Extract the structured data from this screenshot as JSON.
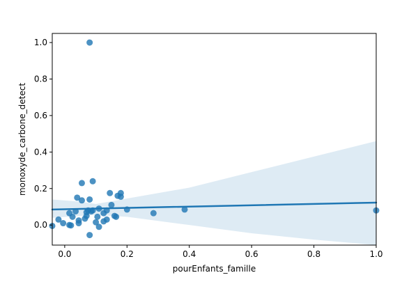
{
  "chart_data": {
    "type": "scatter",
    "title": "",
    "xlabel": "pourEnfants_famille",
    "ylabel": "monoxyde_carbone_detect",
    "xlim": [
      -0.04,
      1.0
    ],
    "ylim": [
      -0.11,
      1.05
    ],
    "xticks": [
      0.0,
      0.2,
      0.4,
      0.6,
      0.8,
      1.0
    ],
    "xtick_labels": [
      "0.0",
      "0.2",
      "0.4",
      "0.6",
      "0.8",
      "1.0"
    ],
    "yticks": [
      0.0,
      0.2,
      0.4,
      0.6,
      0.8,
      1.0
    ],
    "ytick_labels": [
      "0.0",
      "0.2",
      "0.4",
      "0.6",
      "0.8",
      "1.0"
    ],
    "grid": false,
    "legend": "none",
    "colors": {
      "points": "#1f77b4",
      "line": "#1f77b4",
      "band": "#1f77b4"
    },
    "points": [
      {
        "x": -0.04,
        "y": -0.005
      },
      {
        "x": -0.02,
        "y": 0.03
      },
      {
        "x": -0.005,
        "y": 0.01
      },
      {
        "x": 0.015,
        "y": 0.0
      },
      {
        "x": 0.02,
        "y": -0.002
      },
      {
        "x": 0.015,
        "y": 0.065
      },
      {
        "x": 0.025,
        "y": 0.045
      },
      {
        "x": 0.035,
        "y": 0.075
      },
      {
        "x": 0.04,
        "y": 0.15
      },
      {
        "x": 0.045,
        "y": 0.025
      },
      {
        "x": 0.045,
        "y": 0.01
      },
      {
        "x": 0.055,
        "y": 0.23
      },
      {
        "x": 0.055,
        "y": 0.135
      },
      {
        "x": 0.065,
        "y": 0.035
      },
      {
        "x": 0.07,
        "y": 0.05
      },
      {
        "x": 0.07,
        "y": 0.07
      },
      {
        "x": 0.075,
        "y": 0.08
      },
      {
        "x": 0.08,
        "y": 1.0
      },
      {
        "x": 0.08,
        "y": 0.14
      },
      {
        "x": 0.08,
        "y": -0.055
      },
      {
        "x": 0.085,
        "y": 0.075
      },
      {
        "x": 0.09,
        "y": 0.24
      },
      {
        "x": 0.09,
        "y": 0.08
      },
      {
        "x": 0.1,
        "y": 0.015
      },
      {
        "x": 0.105,
        "y": 0.045
      },
      {
        "x": 0.11,
        "y": 0.09
      },
      {
        "x": 0.11,
        "y": -0.01
      },
      {
        "x": 0.125,
        "y": 0.065
      },
      {
        "x": 0.125,
        "y": 0.02
      },
      {
        "x": 0.135,
        "y": 0.03
      },
      {
        "x": 0.135,
        "y": 0.08
      },
      {
        "x": 0.145,
        "y": 0.175
      },
      {
        "x": 0.15,
        "y": 0.11
      },
      {
        "x": 0.16,
        "y": 0.05
      },
      {
        "x": 0.165,
        "y": 0.045
      },
      {
        "x": 0.17,
        "y": 0.16
      },
      {
        "x": 0.18,
        "y": 0.175
      },
      {
        "x": 0.18,
        "y": 0.155
      },
      {
        "x": 0.2,
        "y": 0.085
      },
      {
        "x": 0.285,
        "y": 0.065
      },
      {
        "x": 0.385,
        "y": 0.085
      },
      {
        "x": 1.0,
        "y": 0.08
      }
    ],
    "regression": {
      "x": [
        -0.04,
        1.0
      ],
      "y": [
        0.085,
        0.123
      ],
      "ci_upper": [
        {
          "x": -0.04,
          "y": 0.14
        },
        {
          "x": 0.05,
          "y": 0.128
        },
        {
          "x": 0.1,
          "y": 0.115
        },
        {
          "x": 0.2,
          "y": 0.145
        },
        {
          "x": 0.4,
          "y": 0.205
        },
        {
          "x": 0.6,
          "y": 0.29
        },
        {
          "x": 0.8,
          "y": 0.375
        },
        {
          "x": 1.0,
          "y": 0.46
        }
      ],
      "ci_lower": [
        {
          "x": -0.04,
          "y": 0.04
        },
        {
          "x": 0.05,
          "y": 0.05
        },
        {
          "x": 0.1,
          "y": 0.055
        },
        {
          "x": 0.2,
          "y": 0.045
        },
        {
          "x": 0.4,
          "y": 0.0
        },
        {
          "x": 0.6,
          "y": -0.045
        },
        {
          "x": 0.8,
          "y": -0.08
        },
        {
          "x": 1.0,
          "y": -0.11
        }
      ]
    }
  }
}
